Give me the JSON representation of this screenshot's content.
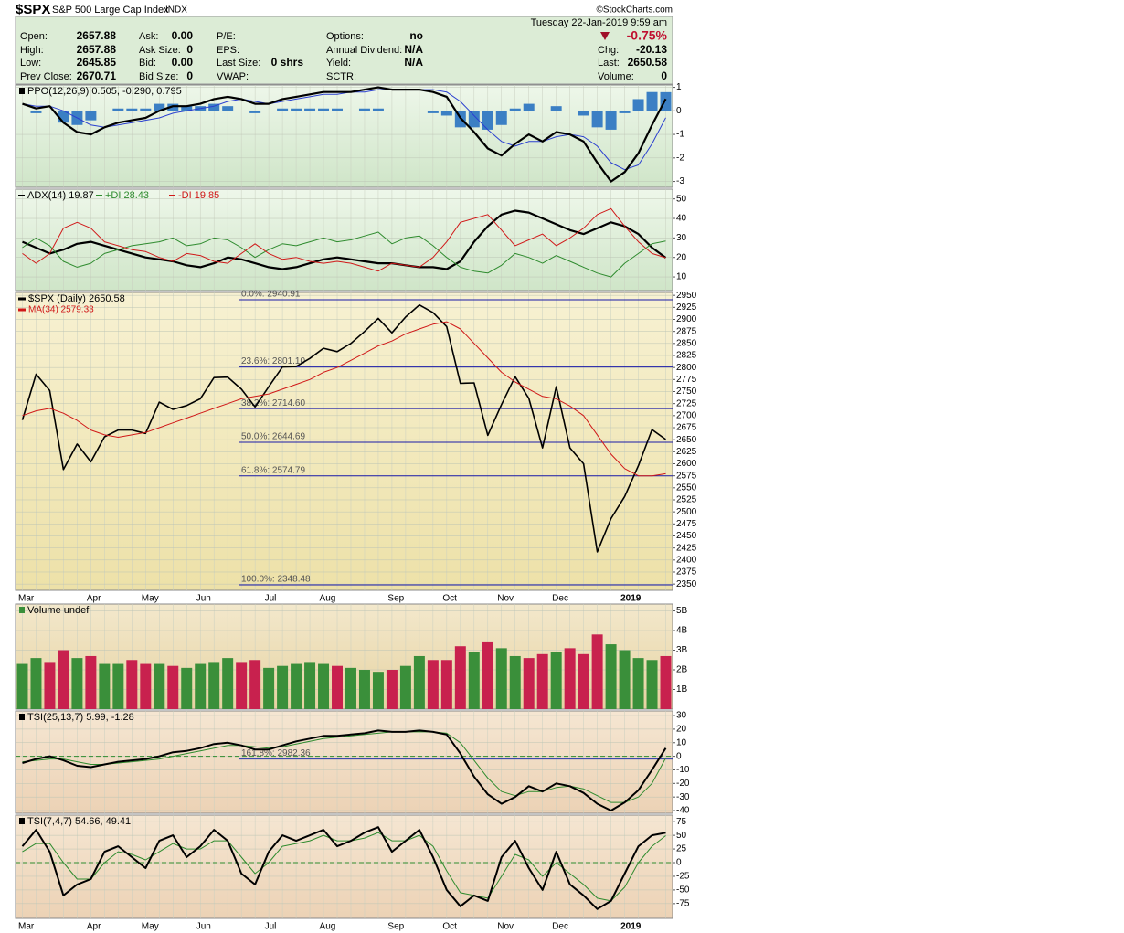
{
  "header": {
    "symbol": "$SPX",
    "name": "S&P 500 Large Cap Index",
    "exchange": "INDX",
    "credit": "©StockCharts.com",
    "timestamp": "Tuesday   22-Jan-2019   9:59 am",
    "change_pct": "-0.75%",
    "fields": [
      [
        {
          "label": "Open:",
          "value": "2657.88"
        },
        {
          "label": "High:",
          "value": "2657.88"
        },
        {
          "label": "Low:",
          "value": "2645.85"
        },
        {
          "label": "Prev Close:",
          "value": "2670.71"
        }
      ],
      [
        {
          "label": "Ask:",
          "value": "0.00"
        },
        {
          "label": "Ask Size:",
          "value": "0"
        },
        {
          "label": "Bid:",
          "value": "0.00"
        },
        {
          "label": "Bid Size:",
          "value": "0"
        }
      ],
      [
        {
          "label": "P/E:"
        },
        {
          "label": "EPS:"
        },
        {
          "label": "Last Size:",
          "value": "0 shrs"
        },
        {
          "label": "VWAP:"
        }
      ],
      [
        {
          "label": "Options:",
          "value": "no"
        },
        {
          "label": "Annual Dividend:",
          "value": "N/A"
        },
        {
          "label": "Yield:",
          "value": "N/A"
        },
        {
          "label": "SCTR:"
        }
      ]
    ],
    "quote": [
      {
        "label": "Chg:",
        "value": "-20.13"
      },
      {
        "label": "Last:",
        "value": "2650.58"
      },
      {
        "label": "Volume:",
        "value": "0"
      }
    ]
  },
  "chart_data": [
    {
      "type": "line",
      "title": "PPO(12,26,9) 0.505, -0.290, 0.795",
      "ylim": [
        -3.25,
        1.1
      ],
      "yticks": [
        1,
        0,
        -1,
        -2,
        -3
      ],
      "grid": true,
      "series": [
        {
          "style": "bar",
          "color": "#3b7fc4",
          "values": [
            0,
            -0.1,
            0,
            -0.5,
            -0.6,
            -0.4,
            0,
            0.1,
            0.1,
            0.1,
            0.3,
            0.3,
            0.2,
            0.2,
            0.3,
            0.2,
            0,
            -0.1,
            0,
            0.1,
            0.1,
            0.1,
            0.1,
            0.1,
            0,
            0.1,
            0.1,
            0,
            0,
            0,
            -0.1,
            -0.2,
            -0.7,
            -0.7,
            -0.8,
            -0.6,
            0.1,
            0.3,
            0,
            0.2,
            0,
            -0.2,
            -0.7,
            -0.8,
            -0.1,
            0.5,
            0.8,
            0.795
          ]
        },
        {
          "style": "line",
          "color": "#2a3fd0",
          "width": 1,
          "values": [
            0.3,
            0.2,
            0.2,
            0,
            -0.3,
            -0.6,
            -0.7,
            -0.6,
            -0.5,
            -0.4,
            -0.3,
            -0.1,
            0,
            0.1,
            0.2,
            0.4,
            0.5,
            0.4,
            0.3,
            0.4,
            0.5,
            0.6,
            0.7,
            0.7,
            0.8,
            0.8,
            0.9,
            0.9,
            0.9,
            0.9,
            0.9,
            0.8,
            0.4,
            -0.2,
            -0.8,
            -1.3,
            -1.5,
            -1.3,
            -1.3,
            -1.1,
            -1,
            -1.1,
            -1.5,
            -2.2,
            -2.5,
            -2.3,
            -1.4,
            -0.29
          ]
        },
        {
          "style": "line",
          "color": "#000000",
          "width": 2.2,
          "values": [
            0.3,
            0.1,
            0.2,
            -0.5,
            -0.9,
            -1,
            -0.7,
            -0.5,
            -0.4,
            -0.3,
            0,
            0.2,
            0.2,
            0.3,
            0.5,
            0.6,
            0.5,
            0.3,
            0.3,
            0.5,
            0.6,
            0.7,
            0.8,
            0.8,
            0.8,
            0.9,
            1,
            0.9,
            0.9,
            0.9,
            0.8,
            0.6,
            -0.3,
            -0.9,
            -1.6,
            -1.9,
            -1.4,
            -1,
            -1.3,
            -0.9,
            -1,
            -1.3,
            -2.2,
            -3,
            -2.6,
            -1.8,
            -0.6,
            0.505
          ]
        }
      ]
    },
    {
      "type": "line",
      "ylim": [
        3,
        55
      ],
      "yticks": [
        50,
        40,
        30,
        20,
        10
      ],
      "grid": true,
      "series": [
        {
          "name": "ADX(14) 19.87",
          "style": "line",
          "color": "#000000",
          "width": 2.2,
          "values": [
            28,
            25,
            22,
            24,
            27,
            28,
            26,
            24,
            22,
            20,
            19,
            18,
            16,
            15,
            17,
            20,
            19,
            17,
            15,
            14,
            15,
            17,
            19,
            20,
            19,
            18,
            17,
            17,
            16,
            15,
            15,
            14,
            18,
            28,
            36,
            42,
            44,
            43,
            40,
            37,
            34,
            32,
            35,
            38,
            36,
            32,
            25,
            19.87
          ]
        },
        {
          "name": "+DI 28.43",
          "style": "line",
          "color": "#2e8b2e",
          "width": 1,
          "values": [
            25,
            30,
            26,
            18,
            15,
            17,
            22,
            24,
            26,
            27,
            28,
            30,
            26,
            27,
            30,
            29,
            25,
            20,
            24,
            27,
            26,
            28,
            30,
            28,
            29,
            31,
            33,
            27,
            30,
            31,
            26,
            20,
            15,
            13,
            12,
            16,
            22,
            20,
            17,
            21,
            18,
            15,
            12,
            10,
            17,
            22,
            27,
            28.43
          ]
        },
        {
          "name": "-DI 19.85",
          "style": "line",
          "color": "#d01818",
          "width": 1,
          "values": [
            22,
            17,
            22,
            35,
            38,
            35,
            28,
            26,
            24,
            23,
            20,
            18,
            22,
            21,
            18,
            17,
            22,
            27,
            22,
            19,
            20,
            18,
            17,
            18,
            17,
            15,
            13,
            17,
            16,
            15,
            20,
            28,
            38,
            40,
            42,
            34,
            26,
            29,
            32,
            26,
            30,
            35,
            42,
            45,
            36,
            28,
            22,
            19.85
          ]
        }
      ]
    },
    {
      "type": "line",
      "ylim": [
        2337,
        2956
      ],
      "yticks": [
        2950,
        2925,
        2900,
        2875,
        2850,
        2825,
        2800,
        2775,
        2750,
        2725,
        2700,
        2675,
        2650,
        2625,
        2600,
        2575,
        2550,
        2525,
        2500,
        2475,
        2450,
        2425,
        2400,
        2375,
        2350
      ],
      "grid": true,
      "categories": [
        "Mar",
        null,
        null,
        null,
        null,
        "Apr",
        null,
        null,
        null,
        "May",
        null,
        null,
        null,
        "Jun",
        null,
        null,
        null,
        null,
        "Jul",
        null,
        null,
        null,
        "Aug",
        null,
        null,
        null,
        null,
        "Sep",
        null,
        null,
        null,
        "Oct",
        null,
        null,
        null,
        "Nov",
        null,
        null,
        null,
        "Dec",
        null,
        null,
        null,
        null,
        "2019",
        null,
        null,
        null
      ],
      "levels": [
        {
          "value": 2940.91,
          "label": "0.0%: 2940.91"
        },
        {
          "value": 2801.1,
          "label": "23.6%: 2801.10"
        },
        {
          "value": 2714.6,
          "label": "38.2%: 2714.60"
        },
        {
          "value": 2644.69,
          "label": "50.0%: 2644.69"
        },
        {
          "value": 2574.79,
          "label": "61.8%: 2574.79"
        },
        {
          "value": 2348.48,
          "label": "100.0%: 2348.48"
        }
      ],
      "series": [
        {
          "name": "$SPX (Daily) 2650.58",
          "style": "line",
          "color": "#000000",
          "width": 1.6,
          "values": [
            2691,
            2786,
            2752,
            2588,
            2641,
            2604,
            2656,
            2670,
            2670,
            2663,
            2728,
            2713,
            2721,
            2735,
            2779,
            2780,
            2755,
            2718,
            2760,
            2801,
            2802,
            2819,
            2840,
            2833,
            2850,
            2875,
            2902,
            2872,
            2905,
            2930,
            2914,
            2885,
            2767,
            2768,
            2659,
            2723,
            2781,
            2736,
            2633,
            2760,
            2633,
            2600,
            2417,
            2486,
            2532,
            2596,
            2671,
            2650.58
          ]
        },
        {
          "name": "MA(34) 2579.33",
          "style": "line",
          "color": "#d01818",
          "width": 1,
          "values": [
            2700,
            2710,
            2715,
            2705,
            2690,
            2670,
            2660,
            2655,
            2660,
            2665,
            2675,
            2685,
            2695,
            2705,
            2715,
            2725,
            2735,
            2740,
            2745,
            2755,
            2765,
            2775,
            2790,
            2800,
            2815,
            2830,
            2845,
            2855,
            2870,
            2880,
            2890,
            2895,
            2880,
            2850,
            2820,
            2790,
            2770,
            2755,
            2740,
            2735,
            2720,
            2700,
            2660,
            2620,
            2590,
            2575,
            2575,
            2579.33
          ]
        }
      ]
    },
    {
      "type": "bar",
      "title": "Volume undef",
      "ylim": [
        0,
        5.35
      ],
      "yticks": [
        {
          "value": 5,
          "label": "5B"
        },
        {
          "value": 4,
          "label": "4B"
        },
        {
          "value": 3,
          "label": "3B"
        },
        {
          "value": 2,
          "label": "2B"
        },
        {
          "value": 1,
          "label": "1B"
        }
      ],
      "grid": true,
      "series": [
        {
          "style": "bar",
          "colors": [
            "#3a8f3a",
            "#3a8f3a",
            "#c8214e",
            "#c8214e",
            "#3a8f3a",
            "#c8214e",
            "#3a8f3a",
            "#3a8f3a",
            "#c8214e",
            "#c8214e",
            "#3a8f3a",
            "#c8214e",
            "#3a8f3a",
            "#3a8f3a",
            "#3a8f3a",
            "#3a8f3a",
            "#c8214e",
            "#c8214e",
            "#3a8f3a",
            "#3a8f3a",
            "#3a8f3a",
            "#3a8f3a",
            "#3a8f3a",
            "#c8214e",
            "#3a8f3a",
            "#3a8f3a",
            "#3a8f3a",
            "#c8214e",
            "#3a8f3a",
            "#3a8f3a",
            "#c8214e",
            "#c8214e",
            "#c8214e",
            "#3a8f3a",
            "#c8214e",
            "#3a8f3a",
            "#3a8f3a",
            "#c8214e",
            "#c8214e",
            "#3a8f3a",
            "#c8214e",
            "#c8214e",
            "#c8214e",
            "#3a8f3a",
            "#3a8f3a",
            "#3a8f3a",
            "#3a8f3a",
            "#c8214e"
          ],
          "values": [
            2.3,
            2.6,
            2.4,
            3,
            2.6,
            2.7,
            2.3,
            2.3,
            2.5,
            2.3,
            2.3,
            2.2,
            2.1,
            2.3,
            2.4,
            2.6,
            2.4,
            2.5,
            2.1,
            2.2,
            2.3,
            2.4,
            2.3,
            2.2,
            2.1,
            2,
            1.9,
            2,
            2.2,
            2.7,
            2.5,
            2.5,
            3.2,
            2.9,
            3.4,
            3.1,
            2.7,
            2.6,
            2.8,
            2.9,
            3.1,
            2.8,
            3.8,
            3.3,
            3,
            2.6,
            2.5,
            2.7
          ]
        }
      ]
    },
    {
      "type": "line",
      "title": "TSI(25,13,7) 5.99, -1.28",
      "annotation": "161.8%: 2982.36",
      "zero_line": true,
      "ylim": [
        -42,
        33.4
      ],
      "yticks": [
        30,
        20,
        10,
        0,
        -10,
        -20,
        -30,
        -40
      ],
      "grid": true,
      "series": [
        {
          "style": "line",
          "color": "#2e8b2e",
          "width": 1,
          "values": [
            -4,
            -3,
            -2,
            -2,
            -4,
            -6,
            -6,
            -5,
            -4,
            -3,
            -2,
            0,
            2,
            4,
            6,
            8,
            8,
            7,
            6,
            7,
            9,
            11,
            13,
            14,
            15,
            16,
            17,
            18,
            18,
            18,
            18,
            17,
            10,
            -3,
            -16,
            -26,
            -29,
            -26,
            -26,
            -23,
            -22,
            -24,
            -29,
            -34,
            -34,
            -30,
            -20,
            -1.28
          ]
        },
        {
          "style": "line",
          "color": "#000000",
          "width": 2,
          "values": [
            -5,
            -2,
            0,
            -3,
            -7,
            -8,
            -6,
            -4,
            -3,
            -2,
            0,
            3,
            4,
            6,
            9,
            10,
            8,
            5,
            5,
            8,
            11,
            13,
            15,
            15,
            16,
            17,
            19,
            18,
            18,
            19,
            18,
            16,
            2,
            -15,
            -28,
            -35,
            -30,
            -22,
            -26,
            -20,
            -22,
            -27,
            -35,
            -40,
            -34,
            -25,
            -10,
            5.99
          ]
        }
      ]
    },
    {
      "type": "line",
      "title": "TSI(7,4,7) 54.66, 49.41",
      "zero_line": true,
      "ylim": [
        -102,
        87
      ],
      "yticks": [
        75,
        50,
        25,
        0,
        -25,
        -50,
        -75
      ],
      "grid": true,
      "categories": [
        "Mar",
        null,
        null,
        null,
        null,
        "Apr",
        null,
        null,
        null,
        "May",
        null,
        null,
        null,
        "Jun",
        null,
        null,
        null,
        null,
        "Jul",
        null,
        null,
        null,
        "Aug",
        null,
        null,
        null,
        null,
        "Sep",
        null,
        null,
        null,
        "Oct",
        null,
        null,
        null,
        "Nov",
        null,
        null,
        null,
        "Dec",
        null,
        null,
        null,
        null,
        "2019",
        null,
        null,
        null
      ],
      "series": [
        {
          "style": "line",
          "color": "#2e8b2e",
          "width": 1,
          "values": [
            20,
            35,
            35,
            0,
            -30,
            -30,
            0,
            20,
            15,
            5,
            20,
            35,
            25,
            25,
            40,
            40,
            10,
            -20,
            0,
            30,
            35,
            40,
            50,
            40,
            40,
            45,
            55,
            40,
            40,
            50,
            30,
            -15,
            -55,
            -60,
            -65,
            -25,
            15,
            5,
            -25,
            0,
            -20,
            -40,
            -65,
            -70,
            -45,
            0,
            30,
            49.41
          ]
        },
        {
          "style": "line",
          "color": "#000000",
          "width": 2,
          "values": [
            30,
            60,
            20,
            -60,
            -40,
            -30,
            20,
            30,
            10,
            -10,
            40,
            50,
            10,
            30,
            60,
            40,
            -20,
            -40,
            20,
            50,
            40,
            50,
            60,
            30,
            40,
            55,
            65,
            20,
            40,
            60,
            10,
            -50,
            -80,
            -60,
            -70,
            10,
            40,
            -10,
            -50,
            20,
            -40,
            -60,
            -85,
            -70,
            -20,
            30,
            50,
            54.66
          ]
        }
      ]
    }
  ]
}
